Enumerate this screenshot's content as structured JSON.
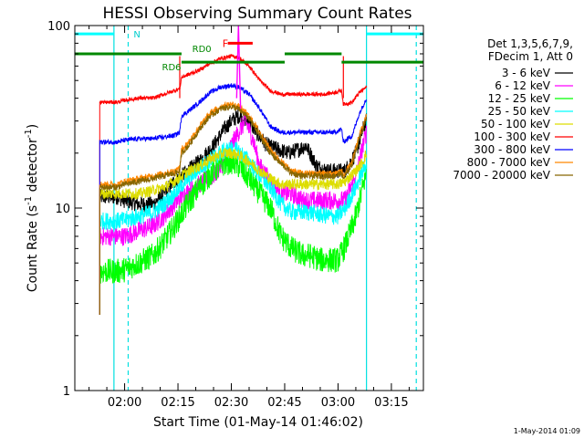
{
  "chart_data": {
    "type": "line",
    "title": "HESSI Observing Summary Count Rates",
    "xlabel": "Start Time (01-May-14 01:46:02)",
    "ylabel_main": "Count Rate (s",
    "ylabel_sup": "-1",
    "ylabel_tail": " detector",
    "ylabel_end": ")",
    "x_range_min": [
      106,
      204
    ],
    "x_ticks": [
      {
        "min": 120,
        "label": "02:00"
      },
      {
        "min": 135,
        "label": "02:15"
      },
      {
        "min": 150,
        "label": "02:30"
      },
      {
        "min": 165,
        "label": "02:45"
      },
      {
        "min": 180,
        "label": "03:00"
      },
      {
        "min": 195,
        "label": "03:15"
      }
    ],
    "y_log": true,
    "ylim": [
      1,
      100
    ],
    "y_ticks": [
      {
        "v": 1,
        "label": "1"
      },
      {
        "v": 10,
        "label": "10"
      },
      {
        "v": 100,
        "label": "100"
      }
    ],
    "legend_header": [
      "Det 1,3,5,6,7,9,",
      "FDecim 1, Att 0"
    ],
    "series": [
      {
        "name": "3 - 6 keV",
        "color": "#000000",
        "points": [
          [
            113,
            11.5
          ],
          [
            118,
            11.5
          ],
          [
            120,
            11
          ],
          [
            124,
            10.5
          ],
          [
            128,
            10.5
          ],
          [
            131,
            12
          ],
          [
            134,
            14
          ],
          [
            137,
            15.5
          ],
          [
            141,
            18
          ],
          [
            145,
            22
          ],
          [
            148,
            27
          ],
          [
            150,
            30
          ],
          [
            152,
            32
          ],
          [
            155,
            30
          ],
          [
            157,
            26
          ],
          [
            160,
            22
          ],
          [
            163,
            21
          ],
          [
            166,
            20
          ],
          [
            169,
            21
          ],
          [
            171,
            22
          ],
          [
            174,
            17
          ],
          [
            177,
            16
          ],
          [
            180,
            16
          ],
          [
            182,
            16
          ],
          [
            185,
            20
          ],
          [
            187,
            27
          ],
          [
            188,
            30
          ]
        ]
      },
      {
        "name": "6 - 12 keV",
        "color": "#ff00ff",
        "points": [
          [
            113,
            7
          ],
          [
            118,
            7
          ],
          [
            120,
            7
          ],
          [
            124,
            7.5
          ],
          [
            128,
            8
          ],
          [
            131,
            9
          ],
          [
            134,
            10.5
          ],
          [
            137,
            12
          ],
          [
            141,
            13.5
          ],
          [
            145,
            15
          ],
          [
            148,
            18
          ],
          [
            150,
            22
          ],
          [
            152,
            26
          ],
          [
            154,
            30
          ],
          [
            156,
            24
          ],
          [
            158,
            17
          ],
          [
            161,
            14
          ],
          [
            164,
            12
          ],
          [
            167,
            12
          ],
          [
            170,
            11
          ],
          [
            172,
            11
          ],
          [
            175,
            11
          ],
          [
            178,
            11
          ],
          [
            180,
            11
          ],
          [
            182,
            11
          ],
          [
            185,
            15
          ],
          [
            187,
            22
          ],
          [
            188,
            26
          ]
        ]
      },
      {
        "name": "12 - 25 keV",
        "color": "#00ff00",
        "points": [
          [
            113,
            4.5
          ],
          [
            118,
            4.5
          ],
          [
            120,
            4.6
          ],
          [
            124,
            5
          ],
          [
            128,
            5.5
          ],
          [
            131,
            6.5
          ],
          [
            134,
            8
          ],
          [
            137,
            10
          ],
          [
            141,
            13
          ],
          [
            145,
            16
          ],
          [
            148,
            17.5
          ],
          [
            150,
            18
          ],
          [
            152,
            17
          ],
          [
            155,
            14.5
          ],
          [
            158,
            12
          ],
          [
            161,
            10
          ],
          [
            164,
            7
          ],
          [
            167,
            6
          ],
          [
            170,
            5.5
          ],
          [
            172,
            5.5
          ],
          [
            175,
            5.2
          ],
          [
            178,
            5.2
          ],
          [
            180,
            5.2
          ],
          [
            182,
            6.2
          ],
          [
            185,
            9
          ],
          [
            187,
            13
          ],
          [
            188,
            16
          ]
        ]
      },
      {
        "name": "25 - 50 keV",
        "color": "#00ffff",
        "points": [
          [
            113,
            8.5
          ],
          [
            118,
            8.5
          ],
          [
            120,
            8.6
          ],
          [
            124,
            9
          ],
          [
            128,
            9.5
          ],
          [
            131,
            10.5
          ],
          [
            134,
            12
          ],
          [
            137,
            14
          ],
          [
            141,
            16.5
          ],
          [
            145,
            19
          ],
          [
            148,
            20.5
          ],
          [
            150,
            21
          ],
          [
            152,
            20.5
          ],
          [
            155,
            18
          ],
          [
            158,
            15
          ],
          [
            161,
            13
          ],
          [
            164,
            10.5
          ],
          [
            167,
            9.5
          ],
          [
            170,
            9.5
          ],
          [
            172,
            9.5
          ],
          [
            175,
            9.2
          ],
          [
            178,
            9
          ],
          [
            180,
            9
          ],
          [
            182,
            10
          ],
          [
            185,
            13
          ],
          [
            187,
            16
          ],
          [
            188,
            18
          ]
        ]
      },
      {
        "name": "50 - 100 keV",
        "color": "#dddd00",
        "points": [
          [
            113,
            12
          ],
          [
            118,
            12
          ],
          [
            120,
            12
          ],
          [
            124,
            12
          ],
          [
            128,
            12.5
          ],
          [
            131,
            13
          ],
          [
            134,
            14
          ],
          [
            137,
            15.5
          ],
          [
            141,
            17
          ],
          [
            145,
            19
          ],
          [
            148,
            20
          ],
          [
            150,
            20
          ],
          [
            152,
            19.5
          ],
          [
            155,
            18
          ],
          [
            158,
            16
          ],
          [
            161,
            14.5
          ],
          [
            164,
            13.5
          ],
          [
            167,
            13.5
          ],
          [
            170,
            13.5
          ],
          [
            172,
            13.5
          ],
          [
            175,
            13.5
          ],
          [
            178,
            13.5
          ],
          [
            180,
            13.5
          ],
          [
            182,
            14
          ],
          [
            185,
            16
          ],
          [
            187,
            18
          ],
          [
            188,
            20
          ]
        ]
      },
      {
        "name": "100 - 300 keV",
        "color": "#ff0000",
        "points": [
          [
            113,
            38
          ],
          [
            118,
            38
          ],
          [
            120,
            39
          ],
          [
            124,
            40
          ],
          [
            128,
            40
          ],
          [
            131,
            42
          ],
          [
            134,
            44
          ],
          [
            135.5,
            45
          ],
          [
            136,
            52
          ],
          [
            138,
            54
          ],
          [
            141,
            57
          ],
          [
            144,
            62
          ],
          [
            147,
            66
          ],
          [
            150,
            68
          ],
          [
            152,
            67
          ],
          [
            155,
            60
          ],
          [
            158,
            50
          ],
          [
            161,
            44
          ],
          [
            164,
            42
          ],
          [
            167,
            42
          ],
          [
            170,
            42
          ],
          [
            173,
            42
          ],
          [
            176,
            42
          ],
          [
            179,
            43
          ],
          [
            181,
            44
          ],
          [
            181.5,
            37
          ],
          [
            184,
            38
          ],
          [
            186,
            43
          ],
          [
            188,
            46
          ]
        ]
      },
      {
        "name": "300 - 800 keV",
        "color": "#0000ff",
        "points": [
          [
            113,
            23
          ],
          [
            118,
            23
          ],
          [
            120,
            23.5
          ],
          [
            124,
            24
          ],
          [
            128,
            24
          ],
          [
            131,
            24.5
          ],
          [
            134,
            25
          ],
          [
            135.5,
            26
          ],
          [
            136,
            32
          ],
          [
            138,
            34
          ],
          [
            141,
            38
          ],
          [
            144,
            43
          ],
          [
            147,
            46
          ],
          [
            150,
            47
          ],
          [
            152,
            46
          ],
          [
            155,
            42
          ],
          [
            158,
            35
          ],
          [
            161,
            28
          ],
          [
            164,
            26
          ],
          [
            167,
            26
          ],
          [
            170,
            26
          ],
          [
            173,
            26
          ],
          [
            176,
            26
          ],
          [
            179,
            26
          ],
          [
            181,
            27
          ],
          [
            181.5,
            23
          ],
          [
            184,
            25
          ],
          [
            186,
            33
          ],
          [
            188,
            40
          ]
        ]
      },
      {
        "name": "800 - 7000 keV",
        "color": "#ff8800",
        "points": [
          [
            113,
            13.5
          ],
          [
            118,
            13.5
          ],
          [
            120,
            14
          ],
          [
            124,
            14.5
          ],
          [
            128,
            15
          ],
          [
            131,
            15.5
          ],
          [
            134,
            16
          ],
          [
            135.5,
            16.5
          ],
          [
            136,
            21
          ],
          [
            138,
            23
          ],
          [
            141,
            28
          ],
          [
            144,
            33
          ],
          [
            147,
            36
          ],
          [
            150,
            37
          ],
          [
            152,
            36
          ],
          [
            155,
            32
          ],
          [
            158,
            26
          ],
          [
            161,
            21
          ],
          [
            164,
            18
          ],
          [
            167,
            16
          ],
          [
            170,
            15.5
          ],
          [
            173,
            15.5
          ],
          [
            176,
            15.5
          ],
          [
            179,
            15.5
          ],
          [
            181,
            16
          ],
          [
            181.5,
            15
          ],
          [
            184,
            18
          ],
          [
            186,
            25
          ],
          [
            188,
            32
          ]
        ]
      },
      {
        "name": "7000 - 20000 keV",
        "color": "#886600",
        "points": [
          [
            113,
            13
          ],
          [
            118,
            13
          ],
          [
            120,
            13.5
          ],
          [
            124,
            14
          ],
          [
            128,
            14.5
          ],
          [
            131,
            15
          ],
          [
            134,
            15.5
          ],
          [
            135.5,
            16
          ],
          [
            136,
            20
          ],
          [
            138,
            22
          ],
          [
            141,
            27
          ],
          [
            144,
            32
          ],
          [
            147,
            35
          ],
          [
            150,
            36
          ],
          [
            152,
            35
          ],
          [
            155,
            31
          ],
          [
            158,
            25
          ],
          [
            161,
            20
          ],
          [
            164,
            17.5
          ],
          [
            167,
            15.5
          ],
          [
            170,
            15
          ],
          [
            173,
            15
          ],
          [
            176,
            15
          ],
          [
            179,
            15
          ],
          [
            181,
            15.5
          ],
          [
            181.5,
            14.5
          ],
          [
            184,
            17.5
          ],
          [
            186,
            24
          ],
          [
            188,
            31
          ]
        ]
      }
    ],
    "flag_label_N": "N",
    "flag_label_RD0": "RD0",
    "flag_label_RD6": "RD6",
    "flag_label_F": "F",
    "night_bars": [
      {
        "x0": 106,
        "x1": 117,
        "y": 90
      },
      {
        "x0": 188,
        "x1": 204,
        "y": 90
      }
    ],
    "rd6_bar": {
      "x0": 106,
      "x1": 136,
      "y": 70
    },
    "rd0_bars": [
      {
        "x0": 136,
        "x1": 165,
        "y": 63
      },
      {
        "x0": 165,
        "x1": 181,
        "y": 70
      },
      {
        "x0": 181,
        "x1": 204,
        "y": 63
      }
    ],
    "flare_bar": {
      "x0": 149,
      "x1": 156,
      "y": 80
    },
    "saa_solid": [
      117,
      188
    ],
    "saa_dashed": [
      121,
      202
    ],
    "red_lines": [
      135.5,
      181.5
    ]
  },
  "footer": {
    "timestamp": "1-May-2014 01:09"
  }
}
